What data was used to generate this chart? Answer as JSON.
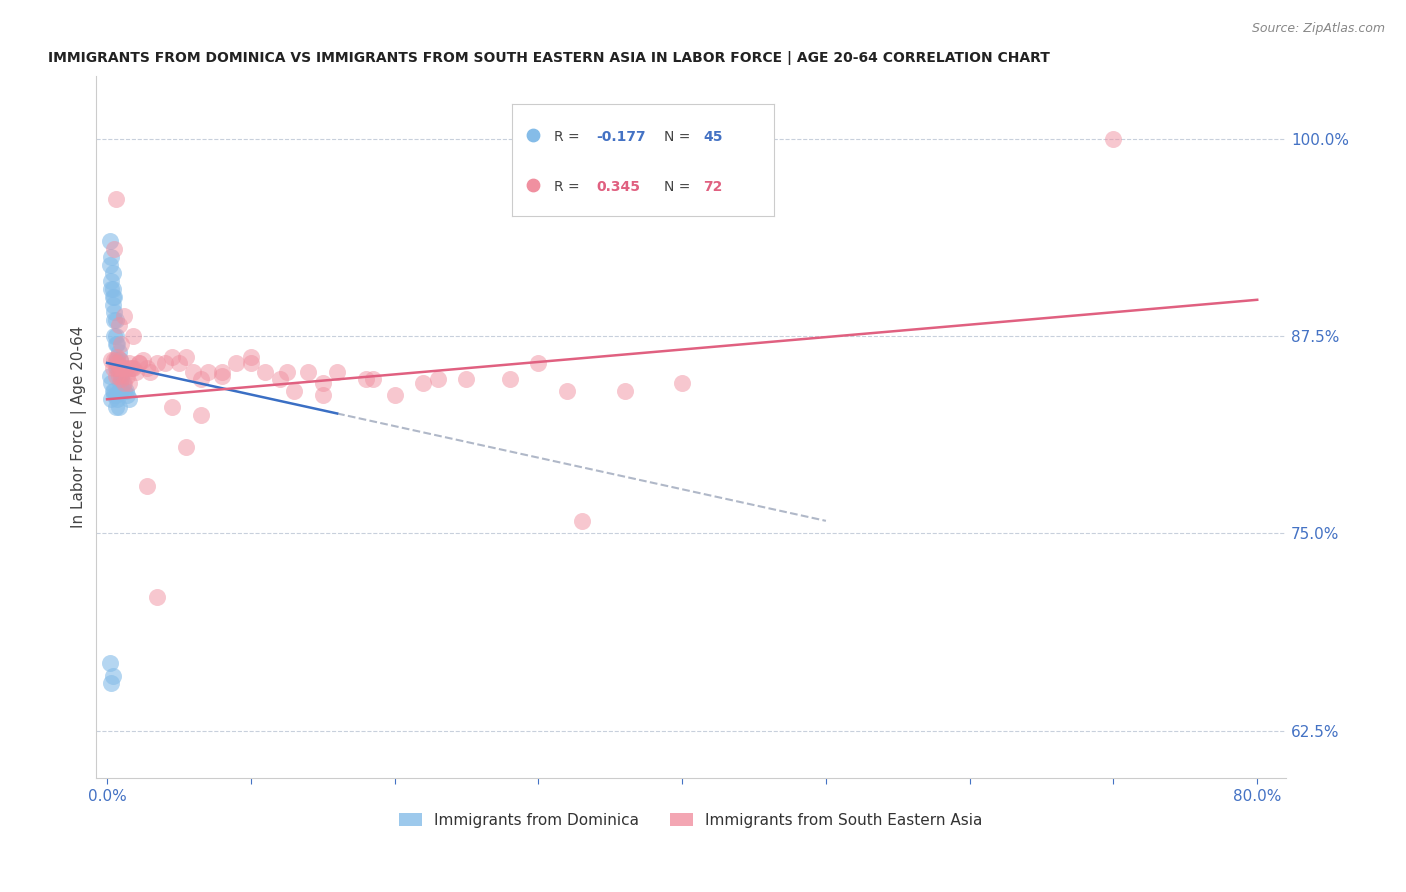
{
  "title": "IMMIGRANTS FROM DOMINICA VS IMMIGRANTS FROM SOUTH EASTERN ASIA IN LABOR FORCE | AGE 20-64 CORRELATION CHART",
  "source": "Source: ZipAtlas.com",
  "ylabel": "In Labor Force | Age 20-64",
  "y_ticks_right": [
    0.625,
    0.75,
    0.875,
    1.0
  ],
  "y_tick_labels_right": [
    "62.5%",
    "75.0%",
    "87.5%",
    "100.0%"
  ],
  "legend_label_blue": "Immigrants from Dominica",
  "legend_label_pink": "Immigrants from South Eastern Asia",
  "blue_color": "#85bce8",
  "pink_color": "#f090a0",
  "axis_label_color": "#4472c4",
  "blue_scatter_x": [
    0.002,
    0.002,
    0.003,
    0.003,
    0.003,
    0.004,
    0.004,
    0.004,
    0.004,
    0.005,
    0.005,
    0.005,
    0.005,
    0.006,
    0.006,
    0.006,
    0.006,
    0.007,
    0.007,
    0.007,
    0.008,
    0.008,
    0.008,
    0.009,
    0.009,
    0.01,
    0.01,
    0.011,
    0.012,
    0.013,
    0.014,
    0.015,
    0.002,
    0.003,
    0.003,
    0.004,
    0.005,
    0.006,
    0.007,
    0.008,
    0.002,
    0.003,
    0.004,
    0.005,
    0.006
  ],
  "blue_scatter_y": [
    0.935,
    0.92,
    0.91,
    0.905,
    0.925,
    0.905,
    0.9,
    0.915,
    0.895,
    0.9,
    0.89,
    0.885,
    0.875,
    0.885,
    0.875,
    0.87,
    0.86,
    0.87,
    0.86,
    0.855,
    0.865,
    0.855,
    0.84,
    0.86,
    0.845,
    0.85,
    0.84,
    0.845,
    0.84,
    0.84,
    0.838,
    0.835,
    0.85,
    0.845,
    0.835,
    0.84,
    0.84,
    0.838,
    0.835,
    0.83,
    0.668,
    0.655,
    0.66,
    0.838,
    0.83
  ],
  "pink_scatter_x": [
    0.003,
    0.004,
    0.005,
    0.006,
    0.006,
    0.007,
    0.007,
    0.008,
    0.008,
    0.009,
    0.01,
    0.01,
    0.011,
    0.012,
    0.013,
    0.014,
    0.015,
    0.016,
    0.017,
    0.018,
    0.02,
    0.022,
    0.025,
    0.028,
    0.03,
    0.035,
    0.04,
    0.045,
    0.05,
    0.055,
    0.06,
    0.065,
    0.07,
    0.08,
    0.09,
    0.1,
    0.11,
    0.12,
    0.13,
    0.14,
    0.15,
    0.16,
    0.18,
    0.2,
    0.22,
    0.25,
    0.28,
    0.32,
    0.36,
    0.4,
    0.005,
    0.006,
    0.008,
    0.01,
    0.012,
    0.015,
    0.018,
    0.022,
    0.028,
    0.035,
    0.045,
    0.055,
    0.065,
    0.08,
    0.1,
    0.125,
    0.15,
    0.185,
    0.23,
    0.3,
    0.7,
    0.33
  ],
  "pink_scatter_y": [
    0.86,
    0.855,
    0.86,
    0.855,
    0.85,
    0.862,
    0.858,
    0.85,
    0.855,
    0.86,
    0.855,
    0.848,
    0.855,
    0.845,
    0.855,
    0.85,
    0.845,
    0.855,
    0.855,
    0.855,
    0.852,
    0.858,
    0.86,
    0.855,
    0.852,
    0.858,
    0.858,
    0.862,
    0.858,
    0.862,
    0.852,
    0.848,
    0.852,
    0.852,
    0.858,
    0.858,
    0.852,
    0.848,
    0.84,
    0.852,
    0.845,
    0.852,
    0.848,
    0.838,
    0.845,
    0.848,
    0.848,
    0.84,
    0.84,
    0.845,
    0.93,
    0.962,
    0.882,
    0.87,
    0.888,
    0.858,
    0.875,
    0.858,
    0.78,
    0.71,
    0.83,
    0.805,
    0.825,
    0.85,
    0.862,
    0.852,
    0.838,
    0.848,
    0.848,
    0.858,
    1.0,
    0.758
  ],
  "xlim": [
    -0.008,
    0.82
  ],
  "ylim": [
    0.595,
    1.04
  ],
  "blue_trend_x": [
    0.0,
    0.16
  ],
  "blue_trend_y": [
    0.858,
    0.826
  ],
  "pink_trend_x": [
    0.0,
    0.8
  ],
  "pink_trend_y": [
    0.835,
    0.898
  ],
  "gray_trend_x": [
    0.16,
    0.5
  ],
  "gray_trend_y": [
    0.826,
    0.758
  ]
}
